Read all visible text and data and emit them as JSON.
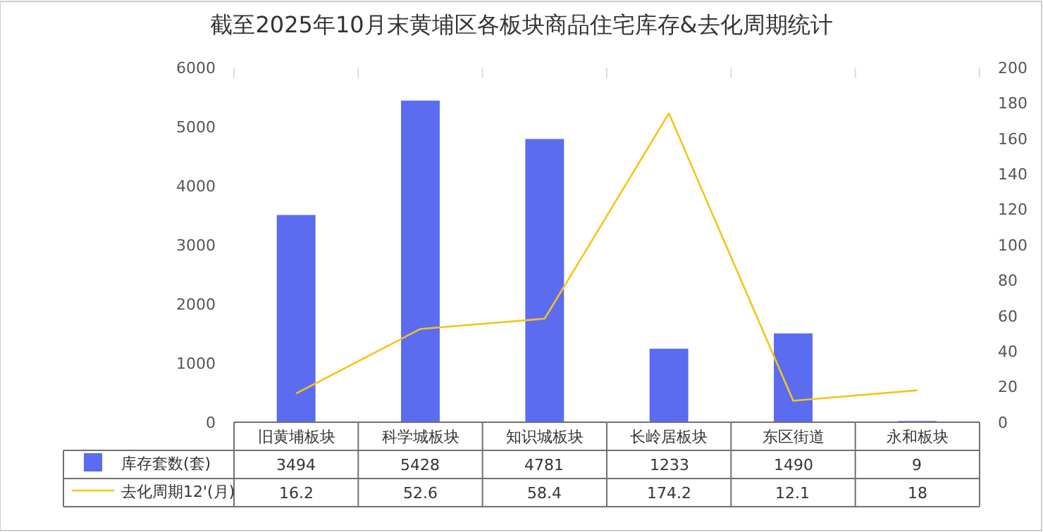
{
  "chart_data": {
    "type": "bar",
    "title": "截至2025年10月末黄埔区各板块商品住宅库存&去化周期统计",
    "categories": [
      "旧黄埔板块",
      "科学城板块",
      "知识城板块",
      "长岭居板块",
      "东区街道",
      "永和板块"
    ],
    "series": [
      {
        "name": "库存套数(套)",
        "color": "#5b6cf0",
        "values": [
          3494,
          5428,
          4781,
          1233,
          1490,
          9
        ]
      },
      {
        "name": "去化周期12'(月)",
        "type": "line",
        "axis": "y2",
        "color": "#f5c518",
        "values": [
          16.2,
          52.6,
          58.4,
          174.2,
          12.1,
          18
        ]
      }
    ],
    "ylim": [
      0,
      6000
    ],
    "yticks": [
      0,
      1000,
      2000,
      3000,
      4000,
      5000,
      6000
    ],
    "y2lim": [
      0,
      200
    ],
    "y2ticks": [
      0,
      20,
      40,
      60,
      80,
      100,
      120,
      140,
      160,
      180,
      200
    ],
    "data_labels": true,
    "legend": "bottom",
    "marker": "none",
    "line_style": "solid"
  }
}
